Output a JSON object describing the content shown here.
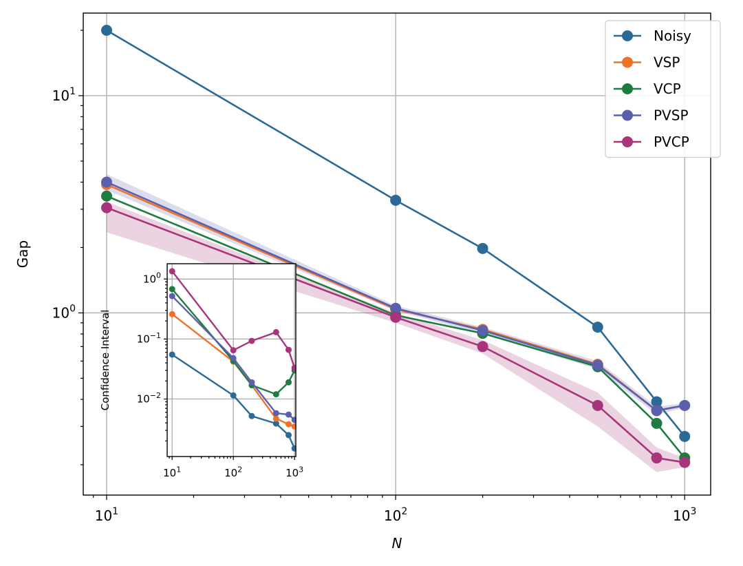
{
  "chart_data": [
    {
      "type": "line",
      "xlabel": "N",
      "ylabel": "Gap",
      "xscale": "log",
      "yscale": "log",
      "xlim": [
        8.3,
        1230
      ],
      "ylim": [
        0.145,
        24
      ],
      "grid": true,
      "legend_position": "top-right",
      "x_ticks": [
        {
          "value": 10,
          "base": "10",
          "exp": "1"
        },
        {
          "value": 100,
          "base": "10",
          "exp": "2"
        },
        {
          "value": 1000,
          "base": "10",
          "exp": "3"
        }
      ],
      "y_ticks": [
        {
          "value": 1,
          "base": "10",
          "exp": "0"
        },
        {
          "value": 10,
          "base": "10",
          "exp": "1"
        }
      ],
      "x": [
        10,
        100,
        200,
        500,
        800,
        1000
      ],
      "series": [
        {
          "name": "Noisy",
          "color": "#2b6a96",
          "values": [
            20.0,
            3.3,
            1.98,
            0.86,
            0.39,
            0.27
          ]
        },
        {
          "name": "VSP",
          "color": "#f07228",
          "values": [
            3.9,
            1.04,
            0.84,
            0.58,
            0.355,
            0.375
          ]
        },
        {
          "name": "VCP",
          "color": "#1e7c40",
          "values": [
            3.45,
            0.975,
            0.805,
            0.565,
            0.31,
            0.215
          ]
        },
        {
          "name": "PVSP",
          "color": "#5b60ac",
          "values": [
            4.0,
            1.05,
            0.83,
            0.575,
            0.355,
            0.375
          ],
          "band": [
            4.35,
            1.08,
            0.86,
            0.6,
            0.37,
            0.385
          ]
        },
        {
          "name": "PVCP",
          "color": "#a8357c",
          "values": [
            3.05,
            0.955,
            0.7,
            0.375,
            0.215,
            0.205
          ],
          "band_lower": [
            2.35,
            0.9,
            0.65,
            0.3,
            0.185,
            0.195
          ],
          "band_upper": [
            3.25,
            1.0,
            0.75,
            0.43,
            0.24,
            0.215
          ]
        }
      ]
    },
    {
      "type": "line",
      "inset": true,
      "xlabel": "",
      "ylabel": "Confidence Interval",
      "xscale": "log",
      "yscale": "log",
      "xlim": [
        8.3,
        1050
      ],
      "ylim": [
        0.0011,
        1.8
      ],
      "grid": true,
      "x_ticks": [
        {
          "value": 10,
          "base": "10",
          "exp": "1"
        },
        {
          "value": 100,
          "base": "10",
          "exp": "2"
        },
        {
          "value": 1000,
          "base": "10",
          "exp": "3"
        }
      ],
      "y_ticks": [
        {
          "value": 0.01,
          "base": "10",
          "exp": "−2"
        },
        {
          "value": 0.1,
          "base": "10",
          "exp": "−1"
        },
        {
          "value": 1,
          "base": "10",
          "exp": "0"
        }
      ],
      "x": [
        10,
        100,
        200,
        500,
        800,
        1000
      ],
      "series": [
        {
          "name": "Noisy",
          "color": "#2b6a96",
          "values": [
            0.055,
            0.0115,
            0.0052,
            0.0039,
            0.0025,
            0.0015
          ]
        },
        {
          "name": "VSP",
          "color": "#f07228",
          "values": [
            0.26,
            0.042,
            0.017,
            0.0047,
            0.0038,
            0.0035
          ]
        },
        {
          "name": "VCP",
          "color": "#1e7c40",
          "values": [
            0.68,
            0.043,
            0.017,
            0.012,
            0.019,
            0.03
          ]
        },
        {
          "name": "PVSP",
          "color": "#5b60ac",
          "values": [
            0.52,
            0.048,
            0.019,
            0.0058,
            0.0055,
            0.0045
          ]
        },
        {
          "name": "PVCP",
          "color": "#a8357c",
          "values": [
            1.35,
            0.065,
            0.093,
            0.13,
            0.066,
            0.033
          ]
        }
      ]
    }
  ]
}
